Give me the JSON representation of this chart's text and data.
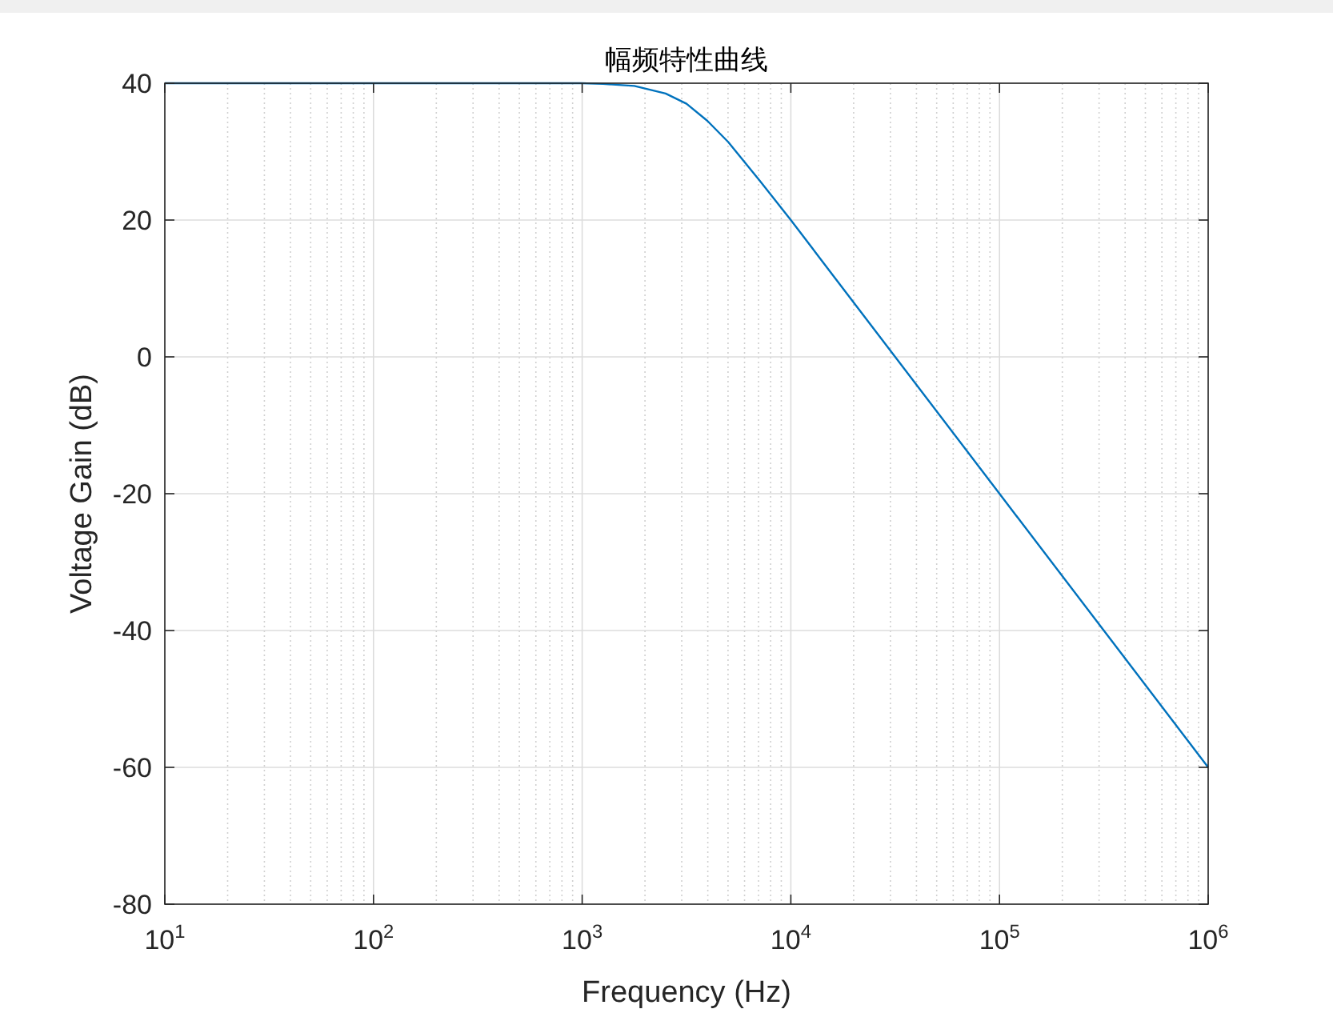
{
  "chart_data": {
    "type": "line",
    "title": "幅频特性曲线",
    "xlabel": "Frequency (Hz)",
    "ylabel": "Voltage Gain (dB)",
    "x": [
      10,
      100,
      1000,
      1259,
      1778,
      2512,
      3162,
      3981,
      5012,
      7079,
      10000,
      15849,
      31623,
      100000,
      316228,
      1000000
    ],
    "values": [
      40,
      40,
      40,
      39.9,
      39.6,
      38.5,
      37,
      34.5,
      31.4,
      25.8,
      20,
      12,
      0,
      -20,
      -40,
      -60
    ],
    "color": "#0072bd",
    "xlim": [
      10,
      1000000
    ],
    "ylim": [
      -80,
      40
    ],
    "xticks": [
      {
        "value": 10,
        "label": "10$^{1}$"
      },
      {
        "value": 100,
        "label": "10$^{2}$"
      },
      {
        "value": 1000,
        "label": "10$^{3}$"
      },
      {
        "value": 10000,
        "label": "10$^{4}$"
      },
      {
        "value": 100000,
        "label": "10$^{5}$"
      },
      {
        "value": 1000000,
        "label": "10$^{6}$"
      }
    ],
    "yticks": [
      -80,
      -60,
      -40,
      -20,
      0,
      20,
      40
    ],
    "log": "x",
    "grid": true
  }
}
